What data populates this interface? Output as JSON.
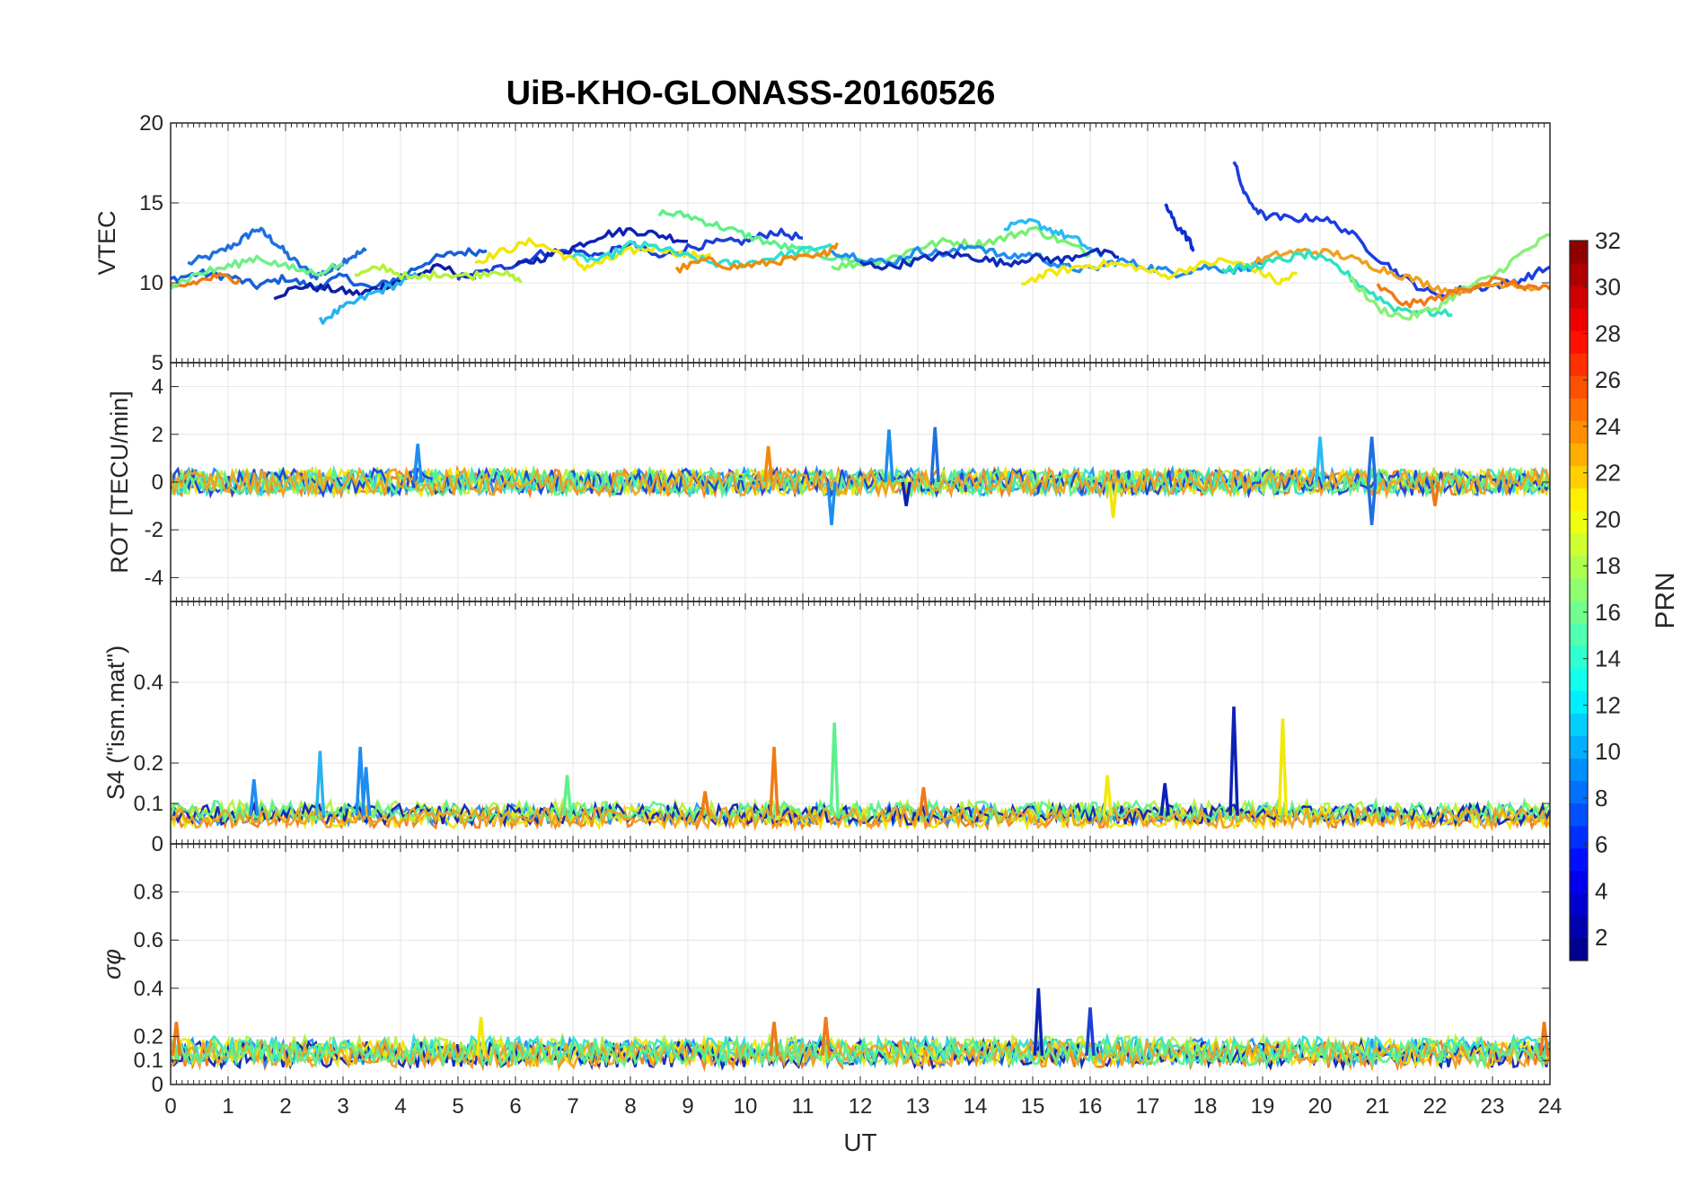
{
  "chart_data": {
    "type": "line",
    "title": "UiB-KHO-GLONASS-20160526",
    "xlabel": "UT",
    "xlim": [
      0,
      24
    ],
    "x_ticks": [
      "0",
      "1",
      "2",
      "3",
      "4",
      "5",
      "6",
      "7",
      "8",
      "9",
      "10",
      "11",
      "12",
      "13",
      "14",
      "15",
      "16",
      "17",
      "18",
      "19",
      "20",
      "21",
      "22",
      "23",
      "24"
    ],
    "grid": true,
    "panels": [
      {
        "ylabel": "VTEC",
        "ylim": [
          5,
          20
        ],
        "y_ticks": [
          "5",
          "10",
          "15",
          "20"
        ],
        "series": [
          {
            "color": "#1f6fe0",
            "x": [
              0.3,
              0.8,
              1.2,
              1.5,
              1.8,
              2.1,
              2.5,
              2.8,
              3.1,
              3.4
            ],
            "y": [
              11.2,
              11.8,
              12.6,
              13.4,
              12.6,
              11.5,
              10.4,
              10.8,
              11.6,
              12.0
            ]
          },
          {
            "color": "#1560d8",
            "x": [
              0.0,
              0.5,
              1.0,
              1.5,
              2.0,
              2.5,
              3.0,
              3.5,
              4.0,
              4.5,
              5.0,
              5.5
            ],
            "y": [
              10.2,
              10.6,
              10.4,
              9.8,
              10.3,
              9.7,
              10.4,
              9.6,
              10.4,
              11.4,
              11.9,
              12.0
            ]
          },
          {
            "color": "#0c1ea8",
            "x": [
              1.8,
              2.3,
              2.8,
              3.3,
              3.7,
              4.2,
              4.7,
              5.3
            ],
            "y": [
              9.2,
              9.8,
              9.6,
              9.3,
              9.8,
              10.4,
              11.0,
              10.2
            ]
          },
          {
            "color": "#28b2f0",
            "x": [
              2.6,
              3.0,
              3.5,
              4.0,
              4.4
            ],
            "y": [
              7.6,
              8.4,
              9.3,
              10.0,
              10.6
            ]
          },
          {
            "color": "#1b3fd8",
            "x": [
              5.0,
              5.5,
              6.0,
              6.5,
              7.0,
              7.5,
              8.0,
              8.5,
              9.0,
              9.5,
              10.0,
              10.5,
              11.0
            ],
            "y": [
              10.3,
              10.7,
              11.2,
              11.9,
              12.0,
              11.7,
              12.4,
              11.6,
              12.2,
              12.5,
              12.6,
              13.2,
              12.8
            ]
          },
          {
            "color": "#0d22b4",
            "x": [
              6.0,
              6.5,
              7.0,
              7.5,
              8.0,
              8.5,
              9.0
            ],
            "y": [
              11.0,
              11.6,
              12.2,
              13.0,
              13.3,
              13.0,
              12.6
            ]
          },
          {
            "color": "#f0e60a",
            "x": [
              5.3,
              5.8,
              6.3,
              6.8,
              7.2,
              7.6,
              8.0,
              8.5,
              9.0,
              9.4
            ],
            "y": [
              11.3,
              12.0,
              12.6,
              11.8,
              11.0,
              11.4,
              12.0,
              12.2,
              11.7,
              11.8
            ]
          },
          {
            "color": "#b4f23c",
            "x": [
              3.2,
              3.7,
              4.2,
              4.7,
              5.2,
              5.7,
              6.1
            ],
            "y": [
              10.4,
              11.0,
              10.2,
              10.6,
              10.4,
              10.8,
              10.0
            ]
          },
          {
            "color": "#5ef08c",
            "x": [
              8.5,
              9.0,
              9.5,
              10.0,
              10.5,
              11.0,
              11.5,
              12.0,
              12.5,
              13.0
            ],
            "y": [
              14.4,
              14.2,
              13.6,
              13.0,
              12.4,
              12.0,
              11.6,
              11.4,
              11.2,
              11.6
            ]
          },
          {
            "color": "#2de0d2",
            "x": [
              7.0,
              7.5,
              8.0,
              8.5,
              9.0,
              9.5,
              10.0,
              10.5,
              11.0,
              11.5
            ],
            "y": [
              11.6,
              11.4,
              12.4,
              12.2,
              11.6,
              11.2,
              11.2,
              11.6,
              12.0,
              12.4
            ]
          },
          {
            "color": "#f08a0a",
            "x": [
              8.8,
              9.3,
              9.8,
              10.3,
              10.8,
              11.3,
              11.6
            ],
            "y": [
              10.8,
              11.4,
              11.0,
              11.2,
              11.5,
              11.6,
              12.5
            ]
          },
          {
            "color": "#78f070",
            "x": [
              11.5,
              12.0,
              12.5,
              13.0,
              13.5,
              14.0,
              14.5,
              15.0,
              15.5,
              16.0
            ],
            "y": [
              11.0,
              11.2,
              11.5,
              12.2,
              12.6,
              12.4,
              12.8,
              13.4,
              12.6,
              11.8
            ]
          },
          {
            "color": "#1f8cf0",
            "x": [
              11.5,
              12.0,
              12.5,
              13.0,
              13.5,
              14.0,
              14.5,
              15.0,
              15.5,
              16.0,
              16.5,
              17.0,
              17.5,
              18.0,
              18.5,
              19.0
            ],
            "y": [
              12.0,
              11.6,
              11.2,
              12.0,
              11.8,
              12.4,
              11.6,
              11.8,
              11.0,
              10.8,
              11.4,
              11.0,
              10.6,
              11.0,
              10.8,
              11.2
            ]
          },
          {
            "color": "#28bcf5",
            "x": [
              14.5,
              15.0,
              15.4,
              15.8,
              16.2
            ],
            "y": [
              13.4,
              13.8,
              13.2,
              12.6,
              11.6
            ]
          },
          {
            "color": "#f2e80c",
            "x": [
              14.8,
              15.3,
              15.8,
              16.3,
              16.8,
              17.3,
              17.8,
              18.3,
              18.8,
              19.3,
              19.6
            ],
            "y": [
              10.0,
              10.6,
              11.0,
              11.2,
              11.0,
              10.4,
              11.0,
              11.4,
              11.0,
              10.0,
              10.6
            ]
          },
          {
            "color": "#0d2ab8",
            "x": [
              12.0,
              12.5,
              13.0,
              13.5,
              14.0,
              14.5,
              15.0,
              15.5,
              16.0,
              16.5
            ],
            "y": [
              11.2,
              11.0,
              11.4,
              11.8,
              11.6,
              11.2,
              11.6,
              11.4,
              12.0,
              11.6
            ]
          },
          {
            "color": "#0d2ed0",
            "x": [
              17.3,
              17.5,
              17.7,
              17.8
            ],
            "y": [
              14.9,
              13.6,
              12.8,
              12.1
            ]
          },
          {
            "color": "#1b3ee0",
            "x": [
              18.5,
              18.7,
              19.0,
              19.5,
              20.0,
              20.5,
              21.0,
              21.5,
              22.0,
              22.5,
              23.0,
              23.5,
              24.0
            ],
            "y": [
              17.6,
              15.4,
              14.2,
              14.0,
              14.1,
              13.2,
              11.6,
              10.2,
              9.2,
              9.6,
              9.8,
              10.2,
              11.0
            ]
          },
          {
            "color": "#f0a020",
            "x": [
              18.8,
              19.3,
              19.8,
              20.3,
              20.8,
              21.3,
              21.8,
              22.3,
              22.8,
              23.3,
              23.8
            ],
            "y": [
              11.2,
              11.8,
              12.0,
              11.8,
              11.2,
              10.6,
              10.0,
              9.4,
              9.8,
              10.0,
              9.6
            ]
          },
          {
            "color": "#2ee2c0",
            "x": [
              18.3,
              18.8,
              19.3,
              19.8,
              20.3,
              20.8,
              21.3,
              21.8,
              22.3
            ],
            "y": [
              10.8,
              11.0,
              11.4,
              11.8,
              11.0,
              9.6,
              8.4,
              8.2,
              8.0
            ]
          },
          {
            "color": "#8af078",
            "x": [
              20.5,
              21.0,
              21.5,
              22.0,
              22.5,
              23.0,
              23.5,
              24.0
            ],
            "y": [
              10.4,
              8.4,
              7.8,
              8.4,
              9.6,
              10.4,
              11.8,
              13.0
            ]
          },
          {
            "color": "#f07a14",
            "x": [
              21.0,
              21.5,
              22.0,
              22.5,
              23.0,
              23.5,
              24.0
            ],
            "y": [
              9.8,
              8.6,
              9.0,
              9.6,
              10.2,
              9.8,
              9.6
            ]
          },
          {
            "color": "#f07a14",
            "x": [
              0.0,
              0.4,
              0.8,
              1.2
            ],
            "y": [
              9.6,
              10.0,
              10.4,
              10.2
            ]
          },
          {
            "color": "#6ef08a",
            "x": [
              0.0,
              0.5,
              1.0,
              1.5,
              2.0,
              2.5,
              3.0
            ],
            "y": [
              9.8,
              10.6,
              11.0,
              11.6,
              11.0,
              10.6,
              11.2
            ]
          }
        ]
      },
      {
        "ylabel": "ROT [TECU/min]",
        "ylim": [
          -5,
          5
        ],
        "y_ticks": [
          "-4",
          "-2",
          "0",
          "2",
          "4"
        ],
        "band_colors": [
          "#f07a14",
          "#1f8cf0",
          "#b4f23c",
          "#f0e60a",
          "#2de0d2",
          "#1b3fd8",
          "#5ef08c",
          "#f0a020"
        ],
        "spikes": [
          {
            "x": 11.5,
            "y": -1.8,
            "color": "#1f8cf0"
          },
          {
            "x": 12.5,
            "y": 2.2,
            "color": "#1f8cf0"
          },
          {
            "x": 13.3,
            "y": 2.3,
            "color": "#1f6fe0"
          },
          {
            "x": 4.3,
            "y": 1.6,
            "color": "#1f8cf0"
          },
          {
            "x": 20.0,
            "y": 1.9,
            "color": "#28bcf5"
          },
          {
            "x": 20.9,
            "y": 1.9,
            "color": "#1f6fe0"
          },
          {
            "x": 20.9,
            "y": -1.8,
            "color": "#1f6fe0"
          },
          {
            "x": 12.8,
            "y": -1.0,
            "color": "#0d22b4"
          },
          {
            "x": 16.4,
            "y": -1.5,
            "color": "#f0e60a"
          },
          {
            "x": 22.0,
            "y": -1.0,
            "color": "#f07a14"
          },
          {
            "x": 10.4,
            "y": 1.5,
            "color": "#f08a0a"
          }
        ]
      },
      {
        "ylabel": "S4 (\"ism.mat\")",
        "ylim": [
          0,
          0.6
        ],
        "y_ticks": [
          "0",
          "0.1",
          "0.2",
          "0.4"
        ],
        "band_colors": [
          "#f07a14",
          "#1f8cf0",
          "#b4f23c",
          "#f0e60a",
          "#0d22b4",
          "#5ef08c",
          "#f0a020"
        ],
        "spikes": [
          {
            "x": 2.6,
            "y": 0.23,
            "color": "#28b2f0"
          },
          {
            "x": 3.3,
            "y": 0.24,
            "color": "#1f8cf0"
          },
          {
            "x": 3.4,
            "y": 0.19,
            "color": "#1f8cf0"
          },
          {
            "x": 1.45,
            "y": 0.16,
            "color": "#1f8cf0"
          },
          {
            "x": 10.5,
            "y": 0.24,
            "color": "#f07a14"
          },
          {
            "x": 11.55,
            "y": 0.3,
            "color": "#5ef08c"
          },
          {
            "x": 18.5,
            "y": 0.34,
            "color": "#0d22b4"
          },
          {
            "x": 19.35,
            "y": 0.31,
            "color": "#f2e80c"
          },
          {
            "x": 16.3,
            "y": 0.17,
            "color": "#f2e80c"
          },
          {
            "x": 17.3,
            "y": 0.15,
            "color": "#0d22b4"
          },
          {
            "x": 6.9,
            "y": 0.17,
            "color": "#5ef08c"
          },
          {
            "x": 9.3,
            "y": 0.13,
            "color": "#f07a14"
          },
          {
            "x": 13.1,
            "y": 0.14,
            "color": "#f07a14"
          }
        ]
      },
      {
        "ylabel": "σφ",
        "ylim": [
          0,
          1
        ],
        "y_ticks": [
          "0",
          "0.1",
          "0.2",
          "0.4",
          "0.6",
          "0.8"
        ],
        "band_colors": [
          "#f07a14",
          "#1f8cf0",
          "#b4f23c",
          "#0d22b4",
          "#f0e60a",
          "#2de0d2",
          "#f0a020",
          "#5ef08c"
        ],
        "spikes": [
          {
            "x": 15.1,
            "y": 0.4,
            "color": "#0d22b4"
          },
          {
            "x": 16.0,
            "y": 0.32,
            "color": "#1b3fd8"
          },
          {
            "x": 0.1,
            "y": 0.26,
            "color": "#f07a14"
          },
          {
            "x": 5.4,
            "y": 0.28,
            "color": "#f2e80c"
          },
          {
            "x": 10.5,
            "y": 0.26,
            "color": "#f07a14"
          },
          {
            "x": 11.4,
            "y": 0.28,
            "color": "#f07a14"
          },
          {
            "x": 23.9,
            "y": 0.26,
            "color": "#f07a14"
          }
        ]
      }
    ],
    "colorbar": {
      "label": "PRN",
      "ticks": [
        "2",
        "4",
        "6",
        "8",
        "10",
        "12",
        "14",
        "16",
        "18",
        "20",
        "22",
        "24",
        "26",
        "28",
        "30",
        "32"
      ],
      "range": [
        1,
        32
      ],
      "colormap": "jet"
    }
  }
}
